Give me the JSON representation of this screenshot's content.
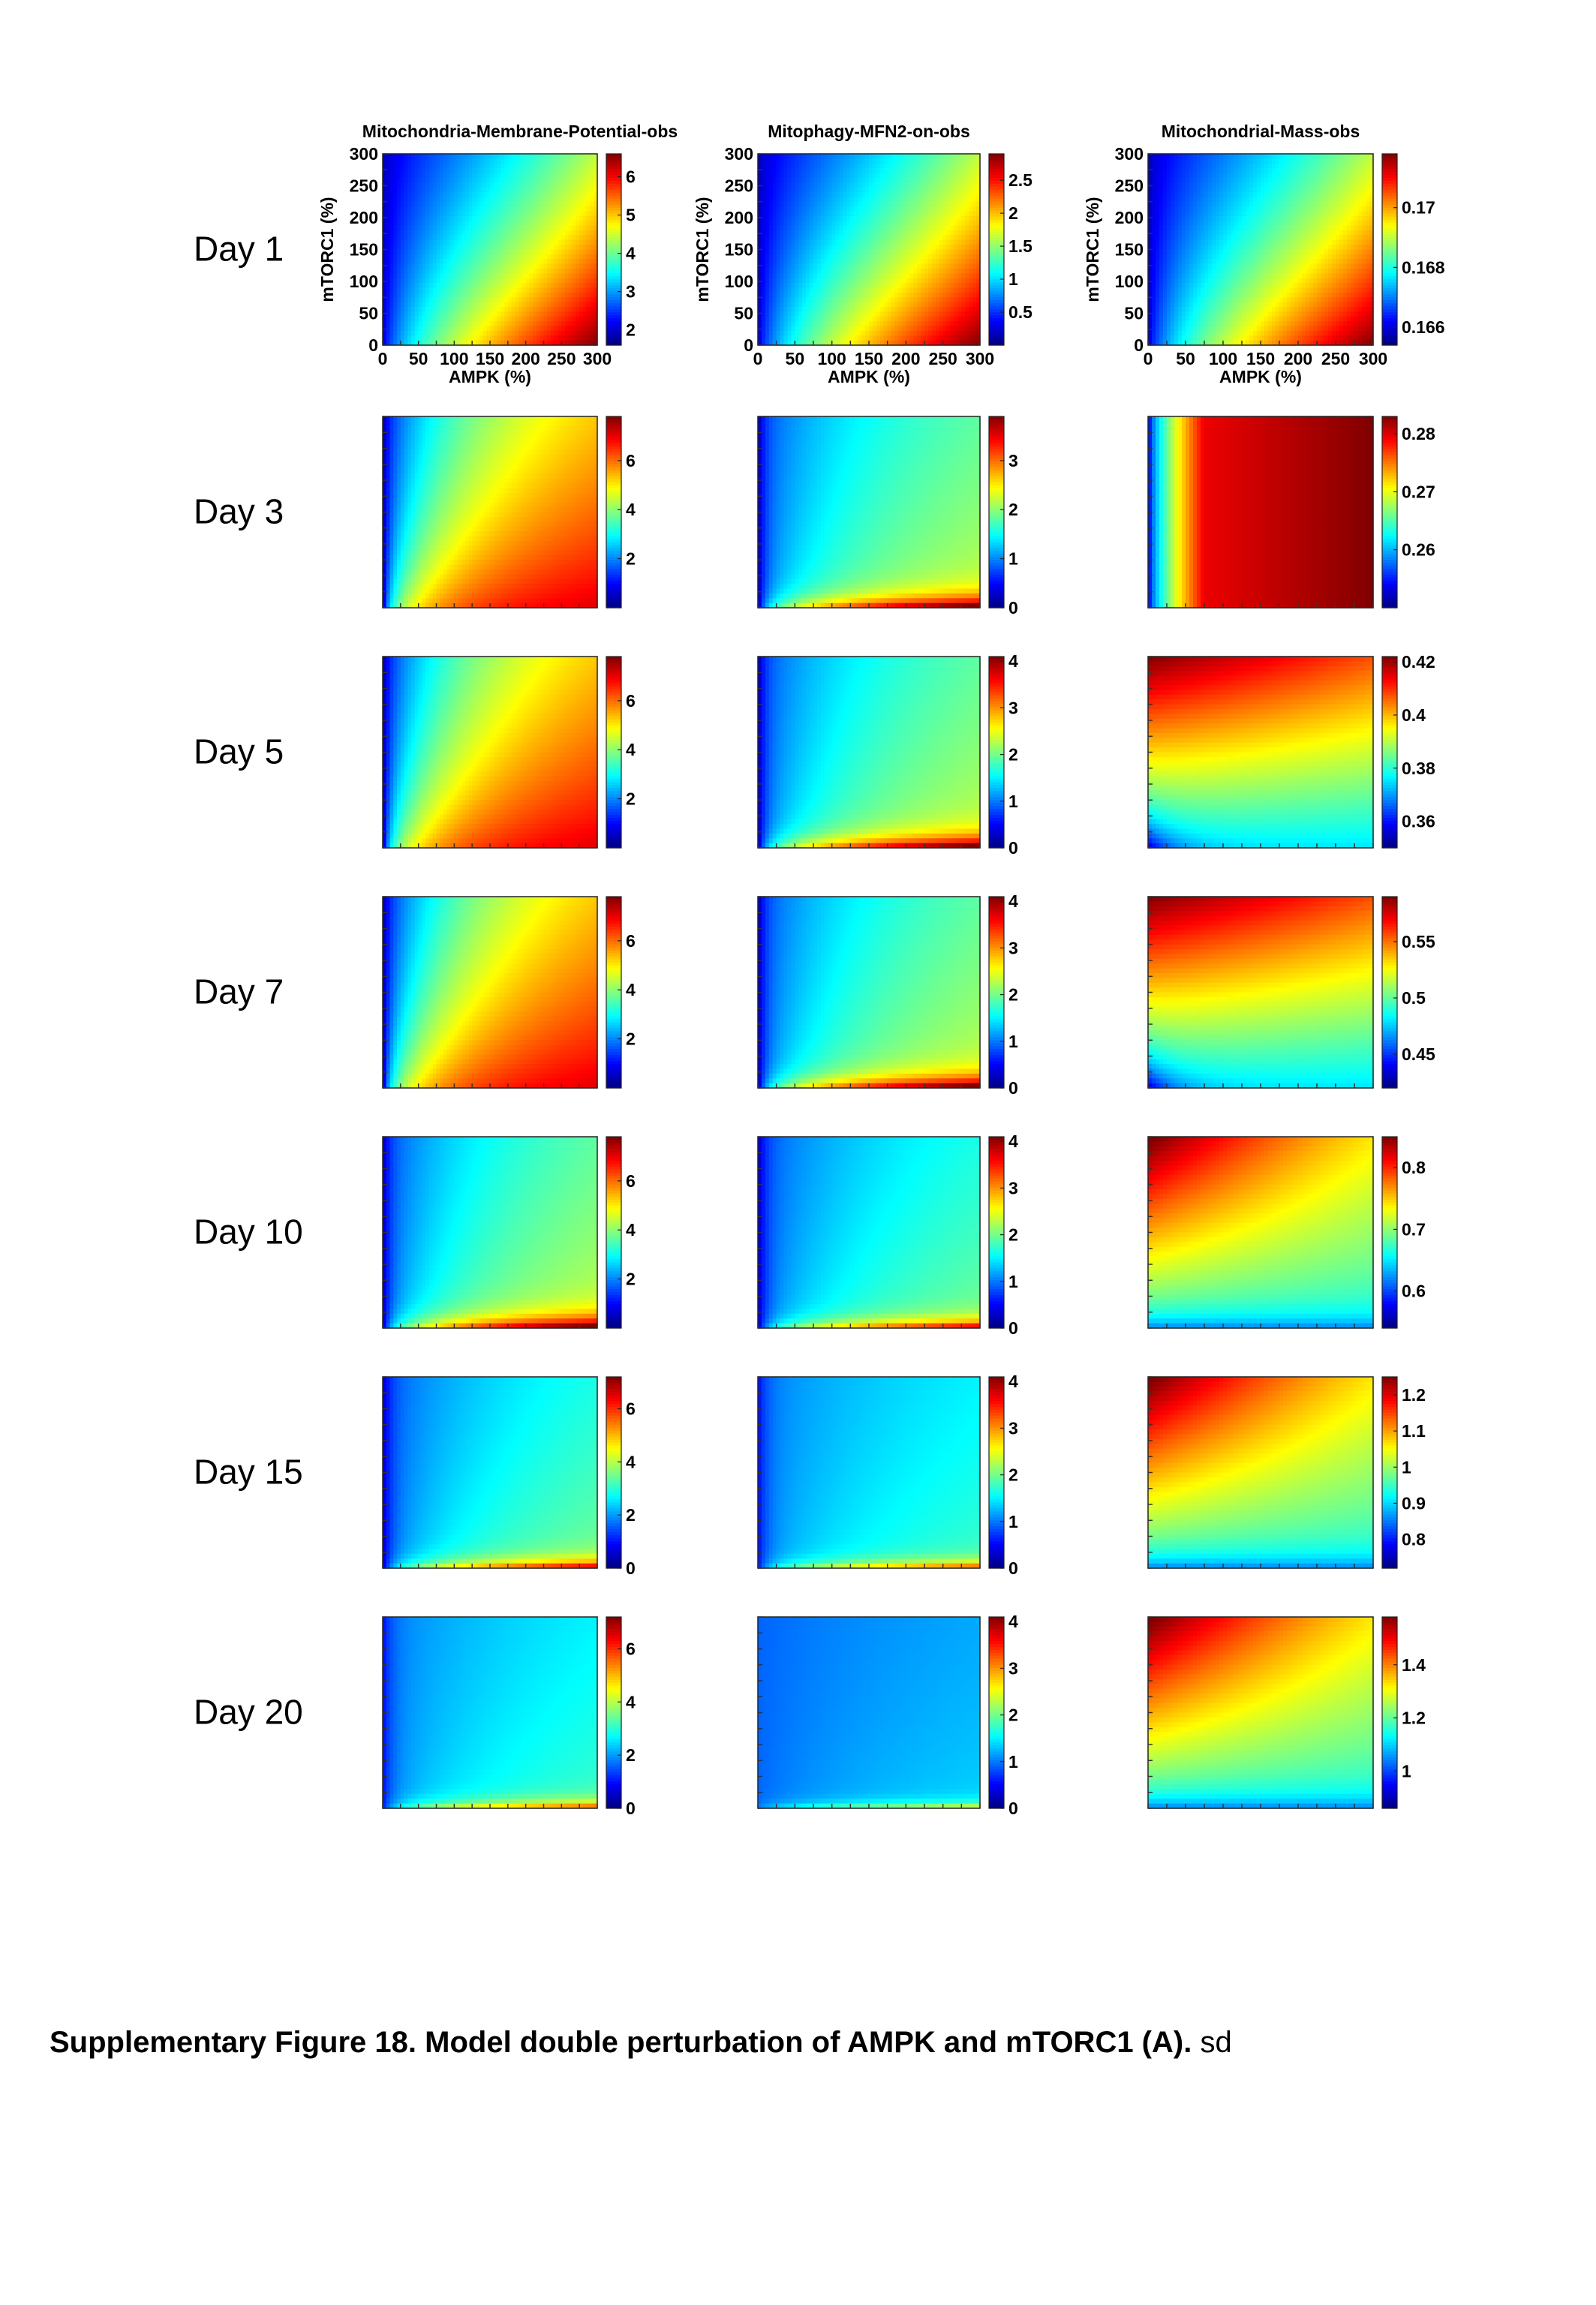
{
  "figure": {
    "column_titles": [
      "Mitochondria-Membrane-Potential-obs",
      "Mitophagy-MFN2-on-obs",
      "Mitochondrial-Mass-obs"
    ],
    "row_labels": [
      "Day 1",
      "Day 3",
      "Day 5",
      "Day 7",
      "Day 10",
      "Day 15",
      "Day 20"
    ],
    "x_axis_label": "AMPK (%)",
    "y_axis_label": "mTORC1 (%)",
    "x_ticks": [
      "0",
      "50",
      "100",
      "150",
      "200",
      "250",
      "300"
    ],
    "y_ticks": [
      "0",
      "50",
      "100",
      "150",
      "200",
      "250",
      "300"
    ],
    "colormap": "jet"
  },
  "chart_data": [
    {
      "type": "heatmap",
      "row": "Day 1",
      "column": "Mitochondria-Membrane-Potential-obs",
      "xlim": [
        0,
        300
      ],
      "ylim": [
        0,
        300
      ],
      "colorbar_ticks": [
        "2",
        "3",
        "4",
        "5",
        "6"
      ],
      "colorbar_range": [
        1.6,
        6.6
      ],
      "pattern": "diagonal"
    },
    {
      "type": "heatmap",
      "row": "Day 1",
      "column": "Mitophagy-MFN2-on-obs",
      "xlim": [
        0,
        300
      ],
      "ylim": [
        0,
        300
      ],
      "colorbar_ticks": [
        "0.5",
        "1",
        "1.5",
        "2",
        "2.5"
      ],
      "colorbar_range": [
        0,
        2.9
      ],
      "pattern": "diagonal"
    },
    {
      "type": "heatmap",
      "row": "Day 1",
      "column": "Mitochondrial-Mass-obs",
      "xlim": [
        0,
        300
      ],
      "ylim": [
        0,
        300
      ],
      "colorbar_ticks": [
        "0.166",
        "0.168",
        "0.17"
      ],
      "colorbar_range": [
        0.1654,
        0.1718
      ],
      "pattern": "diagonal"
    },
    {
      "type": "heatmap",
      "row": "Day 3",
      "column": "Mitochondria-Membrane-Potential-obs",
      "colorbar_ticks": [
        "2",
        "4",
        "6"
      ],
      "colorbar_range": [
        0,
        7.8
      ],
      "pattern": "fan_high"
    },
    {
      "type": "heatmap",
      "row": "Day 3",
      "column": "Mitophagy-MFN2-on-obs",
      "colorbar_ticks": [
        "0",
        "1",
        "2",
        "3"
      ],
      "colorbar_range": [
        0,
        3.9
      ],
      "pattern": "fan_mid"
    },
    {
      "type": "heatmap",
      "row": "Day 3",
      "column": "Mitochondrial-Mass-obs",
      "colorbar_ticks": [
        "0.26",
        "0.27",
        "0.28"
      ],
      "colorbar_range": [
        0.25,
        0.283
      ],
      "pattern": "mass_x"
    },
    {
      "type": "heatmap",
      "row": "Day 5",
      "column": "Mitochondria-Membrane-Potential-obs",
      "colorbar_ticks": [
        "2",
        "4",
        "6"
      ],
      "colorbar_range": [
        0,
        7.8
      ],
      "pattern": "fan_high"
    },
    {
      "type": "heatmap",
      "row": "Day 5",
      "column": "Mitophagy-MFN2-on-obs",
      "colorbar_ticks": [
        "0",
        "1",
        "2",
        "3",
        "4"
      ],
      "colorbar_range": [
        0,
        4.1
      ],
      "pattern": "fan_mid"
    },
    {
      "type": "heatmap",
      "row": "Day 5",
      "column": "Mitochondrial-Mass-obs",
      "colorbar_ticks": [
        "0.36",
        "0.38",
        "0.4",
        "0.42"
      ],
      "colorbar_range": [
        0.35,
        0.422
      ],
      "pattern": "mass_top"
    },
    {
      "type": "heatmap",
      "row": "Day 7",
      "column": "Mitochondria-Membrane-Potential-obs",
      "colorbar_ticks": [
        "2",
        "4",
        "6"
      ],
      "colorbar_range": [
        0,
        7.8
      ],
      "pattern": "fan_high"
    },
    {
      "type": "heatmap",
      "row": "Day 7",
      "column": "Mitophagy-MFN2-on-obs",
      "colorbar_ticks": [
        "0",
        "1",
        "2",
        "3",
        "4"
      ],
      "colorbar_range": [
        0,
        4.1
      ],
      "pattern": "fan_mid"
    },
    {
      "type": "heatmap",
      "row": "Day 7",
      "column": "Mitochondrial-Mass-obs",
      "colorbar_ticks": [
        "0.45",
        "0.5",
        "0.55"
      ],
      "colorbar_range": [
        0.42,
        0.59
      ],
      "pattern": "mass_top"
    },
    {
      "type": "heatmap",
      "row": "Day 10",
      "column": "Mitochondria-Membrane-Potential-obs",
      "colorbar_ticks": [
        "2",
        "4",
        "6"
      ],
      "colorbar_range": [
        0,
        7.8
      ],
      "pattern": "fan_mid"
    },
    {
      "type": "heatmap",
      "row": "Day 10",
      "column": "Mitophagy-MFN2-on-obs",
      "colorbar_ticks": [
        "0",
        "1",
        "2",
        "3",
        "4"
      ],
      "colorbar_range": [
        0,
        4.1
      ],
      "pattern": "fan_low"
    },
    {
      "type": "heatmap",
      "row": "Day 10",
      "column": "Mitochondrial-Mass-obs",
      "colorbar_ticks": [
        "0.6",
        "0.7",
        "0.8"
      ],
      "colorbar_range": [
        0.54,
        0.85
      ],
      "pattern": "mass_corner"
    },
    {
      "type": "heatmap",
      "row": "Day 15",
      "column": "Mitochondria-Membrane-Potential-obs",
      "colorbar_ticks": [
        "0",
        "2",
        "4",
        "6"
      ],
      "colorbar_range": [
        0,
        7.2
      ],
      "pattern": "fan_low"
    },
    {
      "type": "heatmap",
      "row": "Day 15",
      "column": "Mitophagy-MFN2-on-obs",
      "colorbar_ticks": [
        "0",
        "1",
        "2",
        "3",
        "4"
      ],
      "colorbar_range": [
        0,
        4.1
      ],
      "pattern": "fan_vlow"
    },
    {
      "type": "heatmap",
      "row": "Day 15",
      "column": "Mitochondrial-Mass-obs",
      "colorbar_ticks": [
        "0.8",
        "0.9",
        "1",
        "1.1",
        "1.2"
      ],
      "colorbar_range": [
        0.72,
        1.25
      ],
      "pattern": "mass_corner"
    },
    {
      "type": "heatmap",
      "row": "Day 20",
      "column": "Mitochondria-Membrane-Potential-obs",
      "colorbar_ticks": [
        "0",
        "2",
        "4",
        "6"
      ],
      "colorbar_range": [
        0,
        7.2
      ],
      "pattern": "fan_vlow"
    },
    {
      "type": "heatmap",
      "row": "Day 20",
      "column": "Mitophagy-MFN2-on-obs",
      "colorbar_ticks": [
        "0",
        "1",
        "2",
        "3",
        "4"
      ],
      "colorbar_range": [
        0,
        4.1
      ],
      "pattern": "fan_vvlow"
    },
    {
      "type": "heatmap",
      "row": "Day 20",
      "column": "Mitochondrial-Mass-obs",
      "colorbar_ticks": [
        "1",
        "1.2",
        "1.4"
      ],
      "colorbar_range": [
        0.86,
        1.58
      ],
      "pattern": "mass_corner"
    }
  ],
  "caption": {
    "bold": "Supplementary Figure 18. Model double perturbation of AMPK and mTORC1 (A).",
    "normal": " sd"
  }
}
